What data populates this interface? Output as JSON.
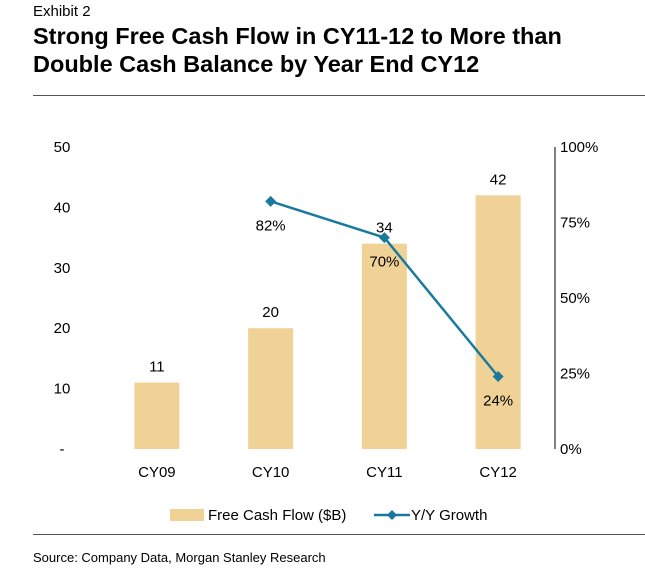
{
  "header": {
    "exhibit": "Exhibit 2",
    "title_line1": "Strong Free Cash Flow in CY11-12 to More than",
    "title_line2": "Double Cash Balance by Year End CY12"
  },
  "source": "Source: Company Data, Morgan Stanley Research",
  "colors": {
    "bar": "#F0D296",
    "line": "#1A7A9E"
  },
  "chart_data": {
    "type": "bar",
    "categories": [
      "CY09",
      "CY10",
      "CY11",
      "CY12"
    ],
    "series": [
      {
        "name": "Free Cash Flow ($B)",
        "type": "bar",
        "axis": "left",
        "values": [
          11,
          20,
          34,
          42
        ],
        "labels": [
          "11",
          "20",
          "34",
          "42"
        ]
      },
      {
        "name": "Y/Y Growth",
        "type": "line",
        "axis": "right",
        "values": [
          null,
          82,
          70,
          24
        ],
        "labels": [
          "",
          "82%",
          "70%",
          "24%"
        ]
      }
    ],
    "y_left": {
      "range": [
        0,
        50
      ],
      "ticks": [
        0,
        10,
        20,
        30,
        40,
        50
      ],
      "tick_labels": [
        "-",
        "10",
        "20",
        "30",
        "40",
        "50"
      ]
    },
    "y_right": {
      "range": [
        0,
        100
      ],
      "ticks": [
        0,
        25,
        50,
        75,
        100
      ],
      "tick_labels": [
        "0%",
        "25%",
        "50%",
        "75%",
        "100%"
      ]
    },
    "legend": {
      "position": "bottom",
      "entries": [
        "Free Cash Flow ($B)",
        "Y/Y Growth"
      ]
    }
  }
}
